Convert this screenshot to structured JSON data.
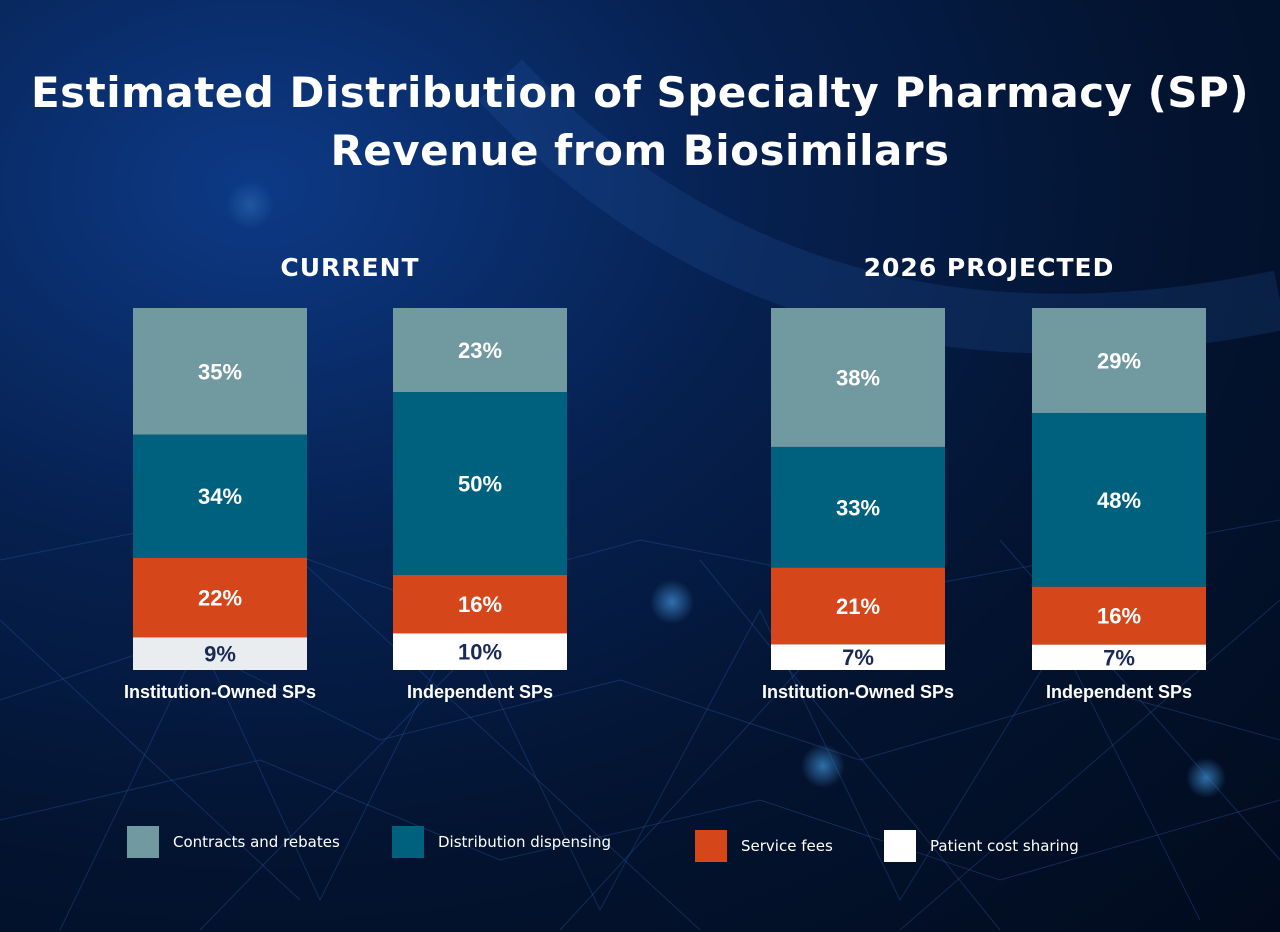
{
  "chart_data": {
    "type": "bar",
    "stacked": true,
    "title": "Estimated Distribution of Specialty Pharmacy (SP) Revenue from Biosimilars",
    "title_lines": [
      "Estimated Distribution of Specialty Pharmacy (SP)",
      "Revenue from Biosimilars"
    ],
    "groups": [
      {
        "label": "CURRENT",
        "categories": [
          "Institution-Owned SPs",
          "Independent SPs"
        ]
      },
      {
        "label": "2026 PROJECTED",
        "categories": [
          "Institution-Owned SPs",
          "Independent SPs"
        ]
      }
    ],
    "series": [
      {
        "name": "Contracts and rebates",
        "color": "#7199a0",
        "values": [
          35,
          23,
          38,
          29
        ]
      },
      {
        "name": "Distribution dispensing",
        "color": "#00617f",
        "values": [
          34,
          50,
          33,
          48
        ]
      },
      {
        "name": "Service fees",
        "color": "#d6461b",
        "values": [
          22,
          16,
          21,
          16
        ]
      },
      {
        "name": "Patient cost sharing",
        "color": "#ffffff",
        "values": [
          9,
          10,
          7,
          7
        ]
      }
    ],
    "data_label_suffix": "%",
    "legend_position": "bottom",
    "grid": false
  }
}
